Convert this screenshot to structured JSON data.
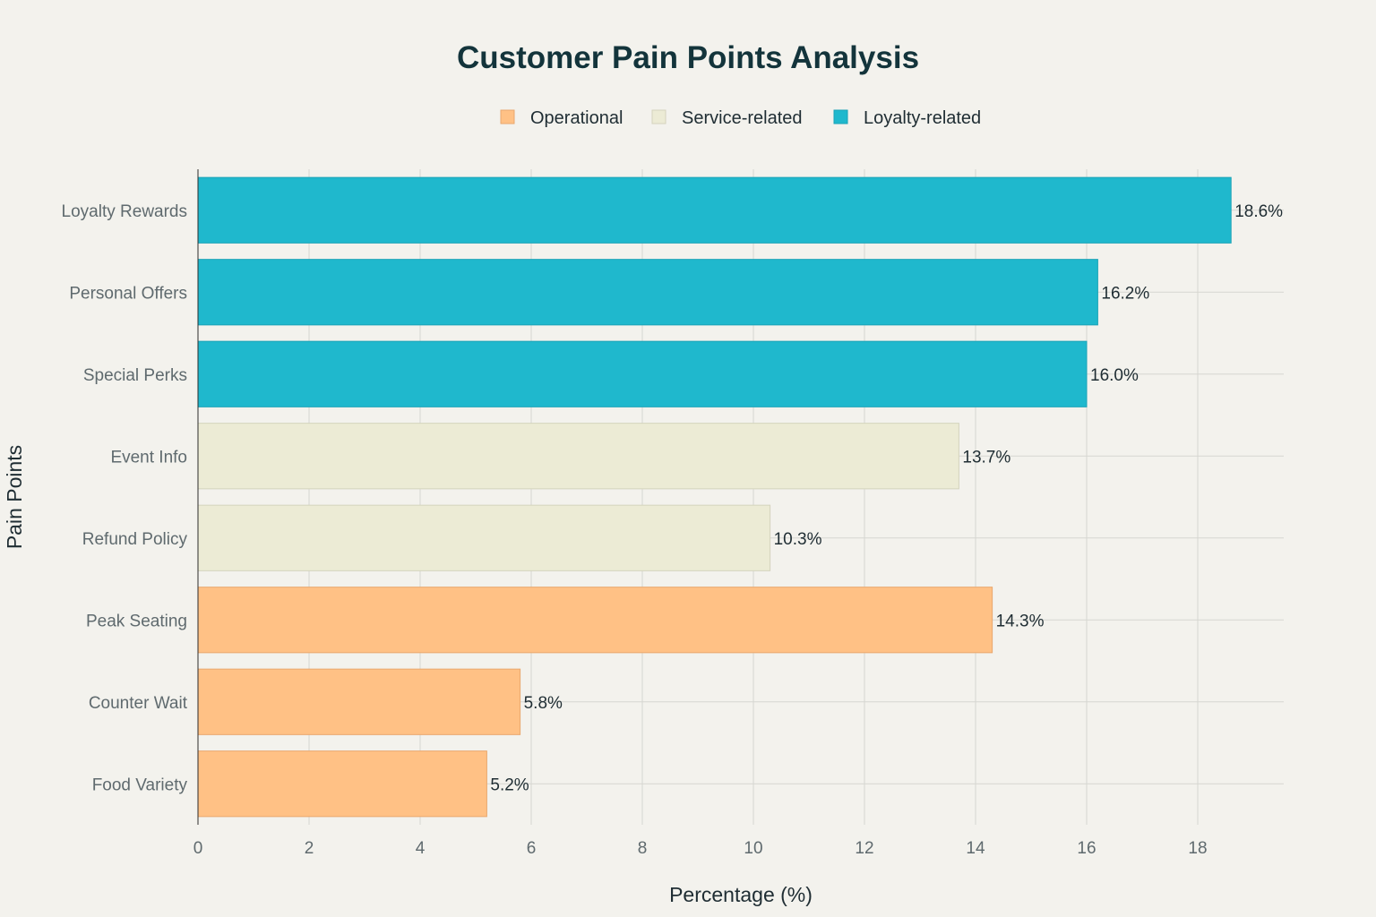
{
  "chart_data": {
    "type": "bar",
    "orientation": "horizontal",
    "title": "Customer Pain Points Analysis",
    "xlabel": "Percentage (%)",
    "ylabel": "Pain Points",
    "xlim": [
      0,
      19.5
    ],
    "x_ticks": [
      0,
      2,
      4,
      6,
      8,
      10,
      12,
      14,
      16,
      18
    ],
    "grid": true,
    "legend_position": "top-center",
    "legend": [
      {
        "name": "Operational",
        "color": "#ffc185"
      },
      {
        "name": "Service-related",
        "color": "#ecebd5"
      },
      {
        "name": "Loyalty-related",
        "color": "#1fb8cd"
      }
    ],
    "categories": [
      "Loyalty Rewards",
      "Personal Offers",
      "Special Perks",
      "Event Info",
      "Refund Policy",
      "Peak Seating",
      "Counter Wait",
      "Food Variety"
    ],
    "values": [
      18.6,
      16.2,
      16.0,
      13.7,
      10.3,
      14.3,
      5.8,
      5.2
    ],
    "value_labels": [
      "18.6%",
      "16.2%",
      "16.0%",
      "13.7%",
      "10.3%",
      "14.3%",
      "5.8%",
      "5.2%"
    ],
    "groups": [
      "Loyalty-related",
      "Loyalty-related",
      "Loyalty-related",
      "Service-related",
      "Service-related",
      "Operational",
      "Operational",
      "Operational"
    ]
  }
}
